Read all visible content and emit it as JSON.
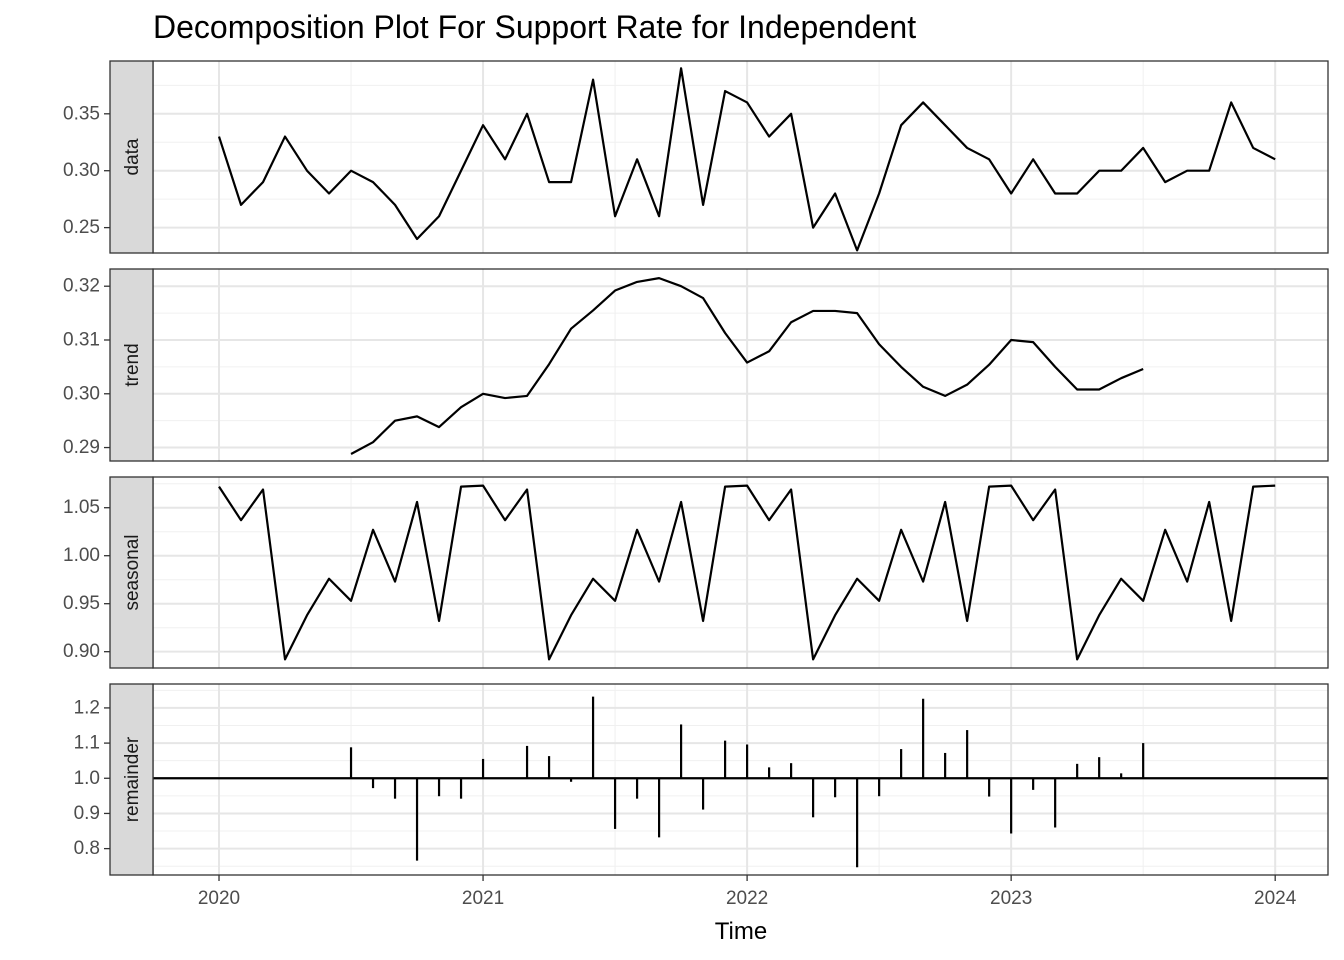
{
  "chart_data": {
    "type": "line",
    "title": "Decomposition Plot For Support Rate for Independent",
    "xlabel": "Time",
    "x_ticks": [
      "2020",
      "2021",
      "2022",
      "2023",
      "2024"
    ],
    "xlim": [
      2019.75,
      2024.2
    ],
    "x_start": 2020,
    "freq": 12,
    "grid": true,
    "panels": [
      {
        "name": "data",
        "style": "line",
        "ylim": [
          0.2277,
          0.3964
        ],
        "ticks": [
          0.25,
          0.3,
          0.35
        ],
        "tick_labels": [
          "0.25",
          "0.30",
          "0.35"
        ],
        "values": [
          0.33,
          0.27,
          0.29,
          0.33,
          0.3,
          0.28,
          0.3,
          0.29,
          0.27,
          0.24,
          0.26,
          0.3,
          0.34,
          0.31,
          0.35,
          0.29,
          0.29,
          0.38,
          0.26,
          0.31,
          0.26,
          0.39,
          0.27,
          0.37,
          0.36,
          0.33,
          0.35,
          0.25,
          0.28,
          0.23,
          0.28,
          0.34,
          0.36,
          0.34,
          0.32,
          0.31,
          0.28,
          0.31,
          0.28,
          0.28,
          0.3,
          0.3,
          0.32,
          0.29,
          0.3,
          0.3,
          0.36,
          0.32,
          0.31
        ]
      },
      {
        "name": "trend",
        "style": "line",
        "ylim": [
          0.2875,
          0.3232
        ],
        "ticks": [
          0.29,
          0.3,
          0.31,
          0.32
        ],
        "tick_labels": [
          "0.29",
          "0.30",
          "0.31",
          "0.32"
        ],
        "values": [
          null,
          null,
          null,
          null,
          null,
          null,
          0.2888,
          0.291,
          0.295,
          0.2958,
          0.2938,
          0.2975,
          0.3,
          0.2992,
          0.2996,
          0.3055,
          0.3121,
          0.3155,
          0.3192,
          0.3208,
          0.3215,
          0.32,
          0.3178,
          0.3113,
          0.3058,
          0.3079,
          0.3133,
          0.3154,
          0.3154,
          0.315,
          0.3092,
          0.305,
          0.3013,
          0.2996,
          0.3017,
          0.3054,
          0.31,
          0.3096,
          0.305,
          0.3008,
          0.3008,
          0.3029,
          0.3046,
          null,
          null,
          null,
          null,
          null,
          null
        ]
      },
      {
        "name": "seasonal",
        "style": "line",
        "ylim": [
          0.883,
          1.082
        ],
        "ticks": [
          0.9,
          0.95,
          1.0,
          1.05
        ],
        "tick_labels": [
          "0.90",
          "0.95",
          "1.00",
          "1.05"
        ],
        "values": [
          1.072,
          1.037,
          1.069,
          0.892,
          0.938,
          0.976,
          0.953,
          1.027,
          0.973,
          1.056,
          0.932,
          1.072,
          1.073,
          1.037,
          1.069,
          0.892,
          0.938,
          0.976,
          0.953,
          1.027,
          0.973,
          1.056,
          0.932,
          1.072,
          1.073,
          1.037,
          1.069,
          0.892,
          0.938,
          0.976,
          0.953,
          1.027,
          0.973,
          1.056,
          0.932,
          1.072,
          1.073,
          1.037,
          1.069,
          0.892,
          0.938,
          0.976,
          0.953,
          1.027,
          0.973,
          1.056,
          0.932,
          1.072,
          1.073
        ]
      },
      {
        "name": "remainder",
        "style": "bar",
        "baseline": 1.0,
        "ylim": [
          0.725,
          1.268
        ],
        "ticks": [
          0.8,
          0.9,
          1.0,
          1.1,
          1.2
        ],
        "tick_labels": [
          "0.8",
          "0.9",
          "1.0",
          "1.1",
          "1.2"
        ],
        "values": [
          null,
          null,
          null,
          null,
          null,
          null,
          1.088,
          0.972,
          0.942,
          0.766,
          0.949,
          0.942,
          1.055,
          1.0,
          1.092,
          1.063,
          0.99,
          1.232,
          0.856,
          0.942,
          0.832,
          1.153,
          0.911,
          1.107,
          1.096,
          1.031,
          1.043,
          0.889,
          0.946,
          0.747,
          0.949,
          1.083,
          1.226,
          1.072,
          1.137,
          0.948,
          0.843,
          0.967,
          0.86,
          1.041,
          1.06,
          1.014,
          1.1,
          null,
          null,
          null,
          null,
          null,
          null
        ]
      }
    ]
  }
}
